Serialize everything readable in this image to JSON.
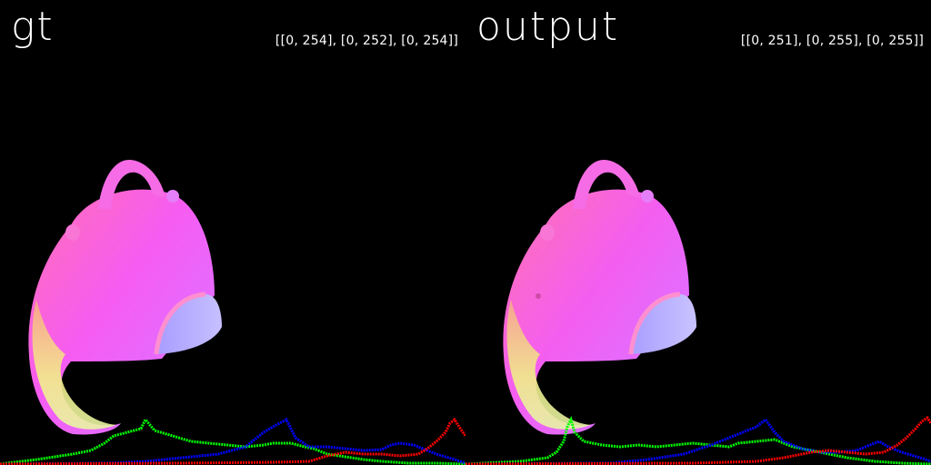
{
  "panels": [
    {
      "id": "gt",
      "title": "gt",
      "range": "[[0, 254], [0, 252], [0, 254]]"
    },
    {
      "id": "output",
      "title": "output",
      "range": "[[0, 251], [0, 255], [0, 255]]"
    }
  ],
  "colors": {
    "background": "#000000",
    "text": "#ffffff",
    "hist_red": "#ff0000",
    "hist_green": "#00ff00",
    "hist_blue": "#0000ff",
    "surface_magenta": "#ff55ff",
    "surface_pink": "#ff70b0",
    "surface_yellow": "#f4f28a",
    "surface_lavender": "#b7b0ff"
  }
}
